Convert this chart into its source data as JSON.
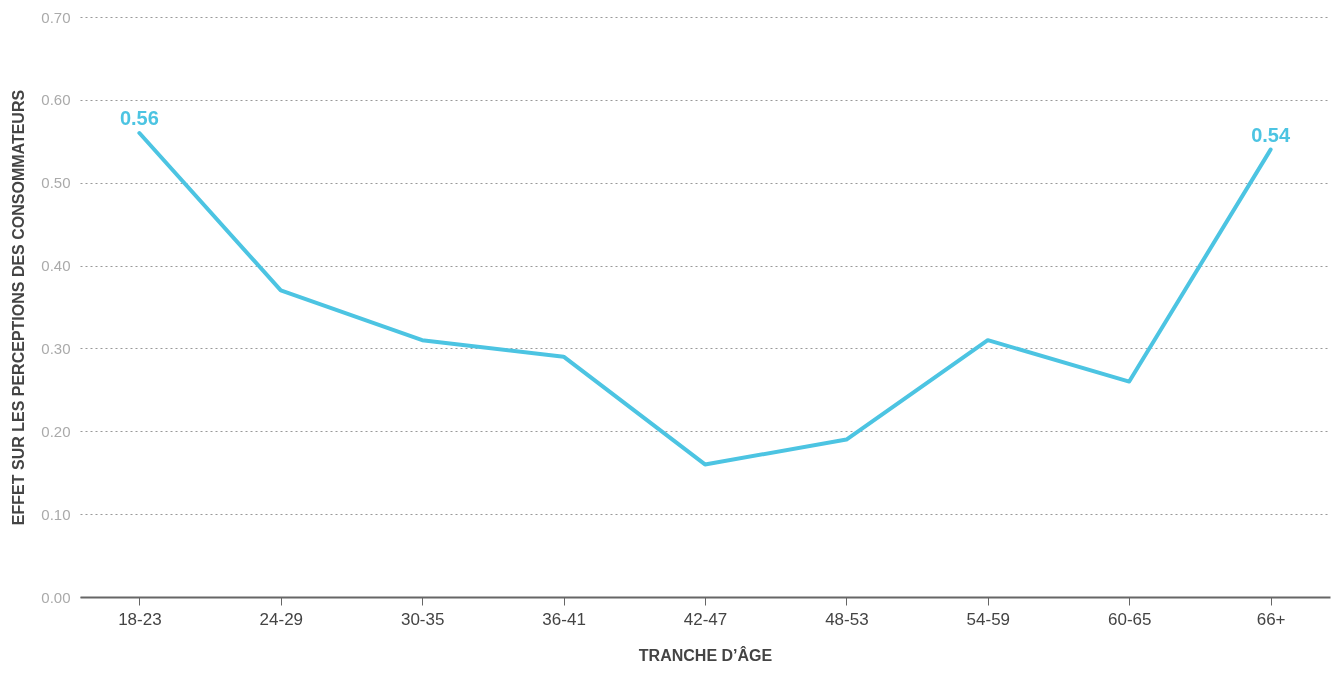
{
  "chart_data": {
    "type": "line",
    "xlabel": "TRANCHE D’ÂGE",
    "ylabel": "EFFET SUR LES PERCEPTIONS DES CONSOMMATEURS",
    "categories": [
      "18-23",
      "24-29",
      "30-35",
      "36-41",
      "42-47",
      "48-53",
      "54-59",
      "60-65",
      "66+"
    ],
    "series": [
      {
        "color": "#4cc4e2",
        "values": [
          0.56,
          0.37,
          0.31,
          0.29,
          0.16,
          0.19,
          0.31,
          0.26,
          0.54
        ],
        "value_labels": [
          "0.56",
          null,
          null,
          null,
          null,
          null,
          null,
          null,
          "0.54"
        ]
      }
    ],
    "ylim": [
      0,
      0.7
    ],
    "yticks": [
      {
        "value": 0,
        "label": "0.00"
      },
      {
        "value": 0.1,
        "label": "0.10"
      },
      {
        "value": 0.2,
        "label": "0.20"
      },
      {
        "value": 0.3,
        "label": "0.30"
      },
      {
        "value": 0.4,
        "label": "0.40"
      },
      {
        "value": 0.5,
        "label": "0.50"
      },
      {
        "value": 0.6,
        "label": "0.60"
      },
      {
        "value": 0.7,
        "label": "0.70"
      }
    ],
    "grid": "y",
    "marker": "none",
    "line_style": "solid"
  }
}
